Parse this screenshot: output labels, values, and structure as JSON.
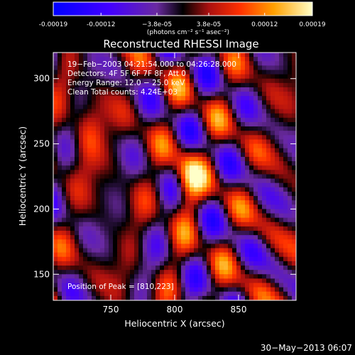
{
  "chart_data": {
    "type": "heatmap",
    "title": "Reconstructed RHESSI Image",
    "xlabel": "Heliocentric X (arcsec)",
    "ylabel": "Heliocentric Y (arcsec)",
    "xlim": [
      705,
      895
    ],
    "ylim": [
      130,
      320
    ],
    "x_ticks": [
      750,
      800,
      850
    ],
    "y_ticks": [
      150,
      200,
      250,
      300
    ],
    "colorbar": {
      "ticks": [
        "-0.00019",
        "-0.00012",
        "−3.8e-05",
        "3.8e-05",
        "0.00012",
        "0.00019"
      ],
      "tick_values": [
        -0.00019,
        -0.00012,
        -3.8e-05,
        3.8e-05,
        0.00012,
        0.00019
      ],
      "range": [
        -0.00019,
        0.00019
      ],
      "unit_label": "(photons cm⁻² s⁻¹ asec⁻²)"
    },
    "annotations": [
      "19−Feb−2003 04:21:54.000  to 04:26:28.000",
      "Detectors: 4F 5F 6F 7F 8F, Att 0",
      "Energy Range: 12.0 − 25.0 keV",
      "Clean     Total counts: 4.24E+03"
    ],
    "peak_text": "Position of Peak = [810,223]",
    "peak": [
      810,
      223
    ],
    "footer_timestamp": "30−May−2013 06:07"
  }
}
